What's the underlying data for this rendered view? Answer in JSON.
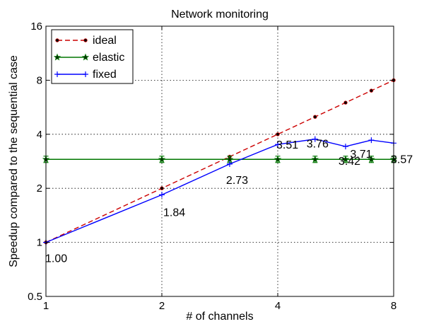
{
  "chart_data": {
    "type": "line",
    "title": "Network monitoring",
    "xlabel": "# of channels",
    "ylabel": "Speedup compared to the sequential case",
    "x_scale": "log2",
    "y_scale": "log2",
    "xlim": [
      1,
      8
    ],
    "ylim": [
      0.5,
      16
    ],
    "x_ticks": [
      1,
      2,
      4,
      8
    ],
    "x_tick_labels": [
      "1",
      "2",
      "4",
      "8"
    ],
    "y_ticks": [
      0.5,
      1,
      2,
      4,
      8,
      16
    ],
    "y_tick_labels": [
      "0.5",
      "1",
      "2",
      "4",
      "8",
      "16"
    ],
    "grid": true,
    "legend_position": "top-left",
    "series": [
      {
        "name": "ideal",
        "color": "#cc0000",
        "style": "dashed-dot-markers",
        "x": [
          1,
          2,
          3,
          4,
          5,
          6,
          7,
          8
        ],
        "y": [
          1,
          2,
          3,
          4,
          5,
          6,
          7,
          8
        ]
      },
      {
        "name": "elastic",
        "color": "#007700",
        "style": "solid-star-markers-errorbars",
        "x": [
          1,
          2,
          3,
          4,
          5,
          6,
          7,
          8
        ],
        "y": [
          2.9,
          2.9,
          2.9,
          2.9,
          2.9,
          2.9,
          2.9,
          2.9
        ]
      },
      {
        "name": "fixed",
        "color": "#0000ff",
        "style": "solid-plus-markers",
        "x": [
          1,
          2,
          3,
          4,
          5,
          6,
          7,
          8
        ],
        "y": [
          1.0,
          1.84,
          2.73,
          3.51,
          3.76,
          3.42,
          3.71,
          3.57
        ]
      }
    ],
    "annotations": [
      {
        "x": 1,
        "y": 1.0,
        "text": "1.00"
      },
      {
        "x": 2,
        "y": 1.84,
        "text": "1.84"
      },
      {
        "x": 3,
        "y": 2.73,
        "text": "2.73"
      },
      {
        "x": 4,
        "y": 3.51,
        "text": "3.51"
      },
      {
        "x": 5,
        "y": 3.76,
        "text": "3.76"
      },
      {
        "x": 6,
        "y": 3.42,
        "text": "3.42"
      },
      {
        "x": 7,
        "y": 3.71,
        "text": "3.71"
      },
      {
        "x": 8,
        "y": 3.57,
        "text": "3.57"
      }
    ]
  }
}
